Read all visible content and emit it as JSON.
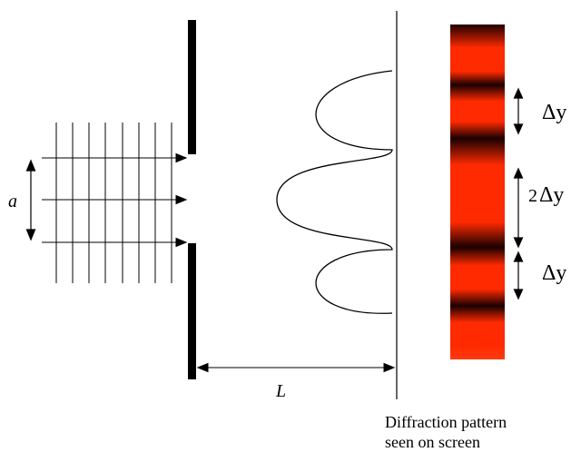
{
  "labels": {
    "slit_width": "a",
    "distance": "L",
    "fringe_top": "Δy",
    "fringe_center_coef": "2",
    "fringe_center": "Δy",
    "fringe_bottom": "Δy"
  },
  "caption": {
    "line1": "Diffraction pattern",
    "line2": "seen on screen"
  },
  "colors": {
    "fringe_bright": "#ff2a00",
    "fringe_dark": "#1a0000",
    "ink": "#000000"
  }
}
